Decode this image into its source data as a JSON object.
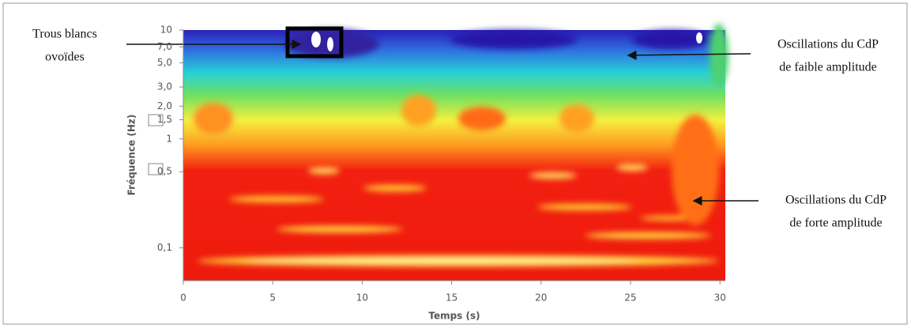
{
  "chart_data": {
    "type": "heatmap",
    "x_label": "Temps (s)",
    "y_label": "Fréquence (Hz)",
    "xlim": [
      0,
      30.3
    ],
    "xticks": [
      0,
      5,
      10,
      15,
      20,
      25,
      30
    ],
    "ylim": [
      0.05,
      10
    ],
    "y_scale": "log",
    "yticks": [
      {
        "value": 10,
        "label": "10"
      },
      {
        "value": 7,
        "label": "7,0"
      },
      {
        "value": 5,
        "label": "5,0"
      },
      {
        "value": 3,
        "label": "3,0"
      },
      {
        "value": 2,
        "label": "2,0"
      },
      {
        "value": 1.5,
        "label": "1,5"
      },
      1,
      {
        "value": 0.5,
        "label": "0,5"
      },
      {
        "value": 0.1,
        "label": "0,1"
      }
    ],
    "annotations": [
      {
        "lines": [
          "Trous blancs",
          "ovoïdes"
        ]
      },
      {
        "lines": [
          "Oscillations du CdP",
          "de faible amplitude"
        ]
      },
      {
        "lines": [
          "Oscillations du CdP",
          "de forte amplitude"
        ]
      }
    ]
  }
}
